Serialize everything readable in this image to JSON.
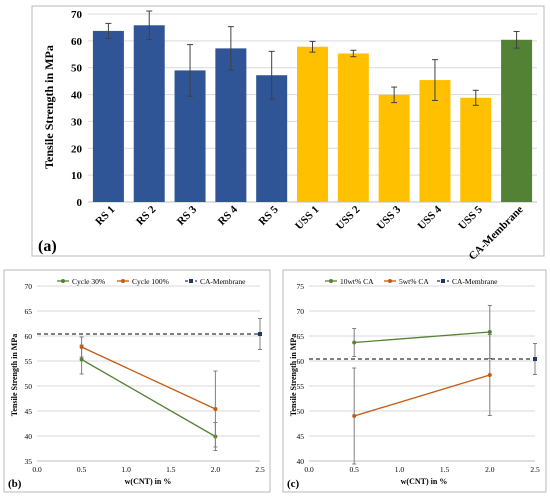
{
  "chart_data": [
    {
      "panel_label": "(a)",
      "type": "bar",
      "ylabel": "Tensile Strength in MPa",
      "ylim": [
        0,
        70
      ],
      "yticks": [
        0,
        10,
        20,
        30,
        40,
        50,
        60,
        70
      ],
      "grid": true,
      "categories": [
        "RS 1",
        "RS 2",
        "RS 3",
        "RS 4",
        "RS 5",
        "USS 1",
        "USS 2",
        "USS 3",
        "USS 4",
        "USS 5",
        "CA-Membrane"
      ],
      "values": [
        63.7,
        65.8,
        49.0,
        57.2,
        47.2,
        57.8,
        55.3,
        39.9,
        45.4,
        38.8,
        60.4
      ],
      "errors": [
        2.8,
        5.3,
        9.6,
        8.1,
        8.9,
        2.0,
        1.2,
        2.9,
        7.6,
        2.8,
        3.1
      ],
      "colors": [
        "#2f5597",
        "#2f5597",
        "#2f5597",
        "#2f5597",
        "#2f5597",
        "#ffc000",
        "#ffc000",
        "#ffc000",
        "#ffc000",
        "#ffc000",
        "#548235"
      ]
    },
    {
      "panel_label": "(b)",
      "type": "line",
      "xlabel": "w(CNT) in %",
      "ylabel": "Tensile Strength in MPa",
      "xlim": [
        0,
        2.5
      ],
      "xticks": [
        "0.0",
        "0.5",
        "1.0",
        "1.5",
        "2.0",
        "2.5"
      ],
      "ylim": [
        35,
        70
      ],
      "yticks": [
        35,
        40,
        45,
        50,
        55,
        60,
        65,
        70
      ],
      "grid": true,
      "legend_position": "top",
      "series": [
        {
          "name": "Cycle 30%",
          "color": "#548235",
          "x": [
            0.5,
            2.0
          ],
          "y": [
            55.3,
            39.9
          ],
          "errors": [
            2.9,
            2.8
          ]
        },
        {
          "name": "Cycle 100%",
          "color": "#c55a11",
          "x": [
            0.5,
            2.0
          ],
          "y": [
            57.8,
            45.4
          ],
          "errors": [
            2.0,
            7.6
          ]
        },
        {
          "name": "CA-Membrane",
          "color": "#1f3864",
          "dashed": true,
          "y_const": 60.4,
          "marker_x": 2.5,
          "marker_error": 3.1
        }
      ]
    },
    {
      "panel_label": "(c)",
      "type": "line",
      "xlabel": "w(CNT) in %",
      "ylabel": "Tensile Strength in MPa",
      "xlim": [
        0,
        2.5
      ],
      "xticks": [
        "0.0",
        "0.5",
        "1.0",
        "1.5",
        "2.0",
        "2.5"
      ],
      "ylim": [
        40,
        75
      ],
      "yticks": [
        40,
        45,
        50,
        55,
        60,
        65,
        70,
        75
      ],
      "grid": true,
      "legend_position": "top",
      "series": [
        {
          "name": "10wt% CA",
          "color": "#548235",
          "x": [
            0.5,
            2.0
          ],
          "y": [
            63.7,
            65.8
          ],
          "errors": [
            2.8,
            5.3
          ]
        },
        {
          "name": "5wt% CA",
          "color": "#c55a11",
          "x": [
            0.5,
            2.0
          ],
          "y": [
            49.0,
            57.2
          ],
          "errors": [
            9.6,
            8.1
          ]
        },
        {
          "name": "CA-Membrane",
          "color": "#1f3864",
          "dashed": true,
          "y_const": 60.4,
          "marker_x": 2.5,
          "marker_error": 3.1
        }
      ]
    }
  ]
}
